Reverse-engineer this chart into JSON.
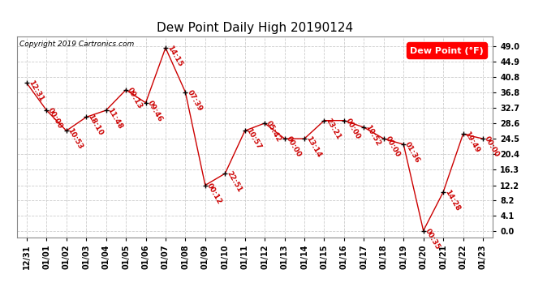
{
  "title": "Dew Point Daily High 20190124",
  "copyright": "Copyright 2019 Cartronics.com",
  "legend_label": "Dew Point (°F)",
  "background_color": "#ffffff",
  "plot_bg_color": "#ffffff",
  "line_color": "#cc0000",
  "marker_color": "#000000",
  "grid_color": "#cccccc",
  "yticks": [
    0.0,
    4.1,
    8.2,
    12.2,
    16.3,
    20.4,
    24.5,
    28.6,
    32.7,
    36.8,
    40.8,
    44.9,
    49.0
  ],
  "ylim": [
    -1.5,
    51.5
  ],
  "dates": [
    "12/31",
    "01/01",
    "01/02",
    "01/03",
    "01/04",
    "01/05",
    "01/06",
    "01/07",
    "01/08",
    "01/09",
    "01/10",
    "01/11",
    "01/12",
    "01/13",
    "01/14",
    "01/15",
    "01/16",
    "01/17",
    "01/18",
    "01/19",
    "01/20",
    "01/21",
    "01/22",
    "01/23"
  ],
  "values": [
    39.2,
    32.0,
    26.6,
    30.2,
    32.0,
    37.4,
    34.0,
    48.5,
    36.8,
    12.2,
    15.3,
    26.6,
    28.6,
    24.5,
    24.5,
    29.3,
    29.3,
    27.5,
    24.5,
    23.0,
    0.2,
    10.4,
    25.7,
    24.5
  ],
  "time_labels": [
    "12:31",
    "00:00",
    "10:53",
    "18:10",
    "11:48",
    "09:13",
    "09:46",
    "14:15",
    "07:39",
    "00:12",
    "22:51",
    "10:57",
    "05:42",
    "00:00",
    "13:14",
    "23:21",
    "00:00",
    "10:52",
    "00:00",
    "01:36",
    "00:35",
    "14:28",
    "19:49",
    "00:00"
  ],
  "label_rotation": -60,
  "title_fontsize": 11,
  "tick_fontsize": 7,
  "label_fontsize": 6.5,
  "copyright_fontsize": 6.5,
  "legend_fontsize": 8
}
